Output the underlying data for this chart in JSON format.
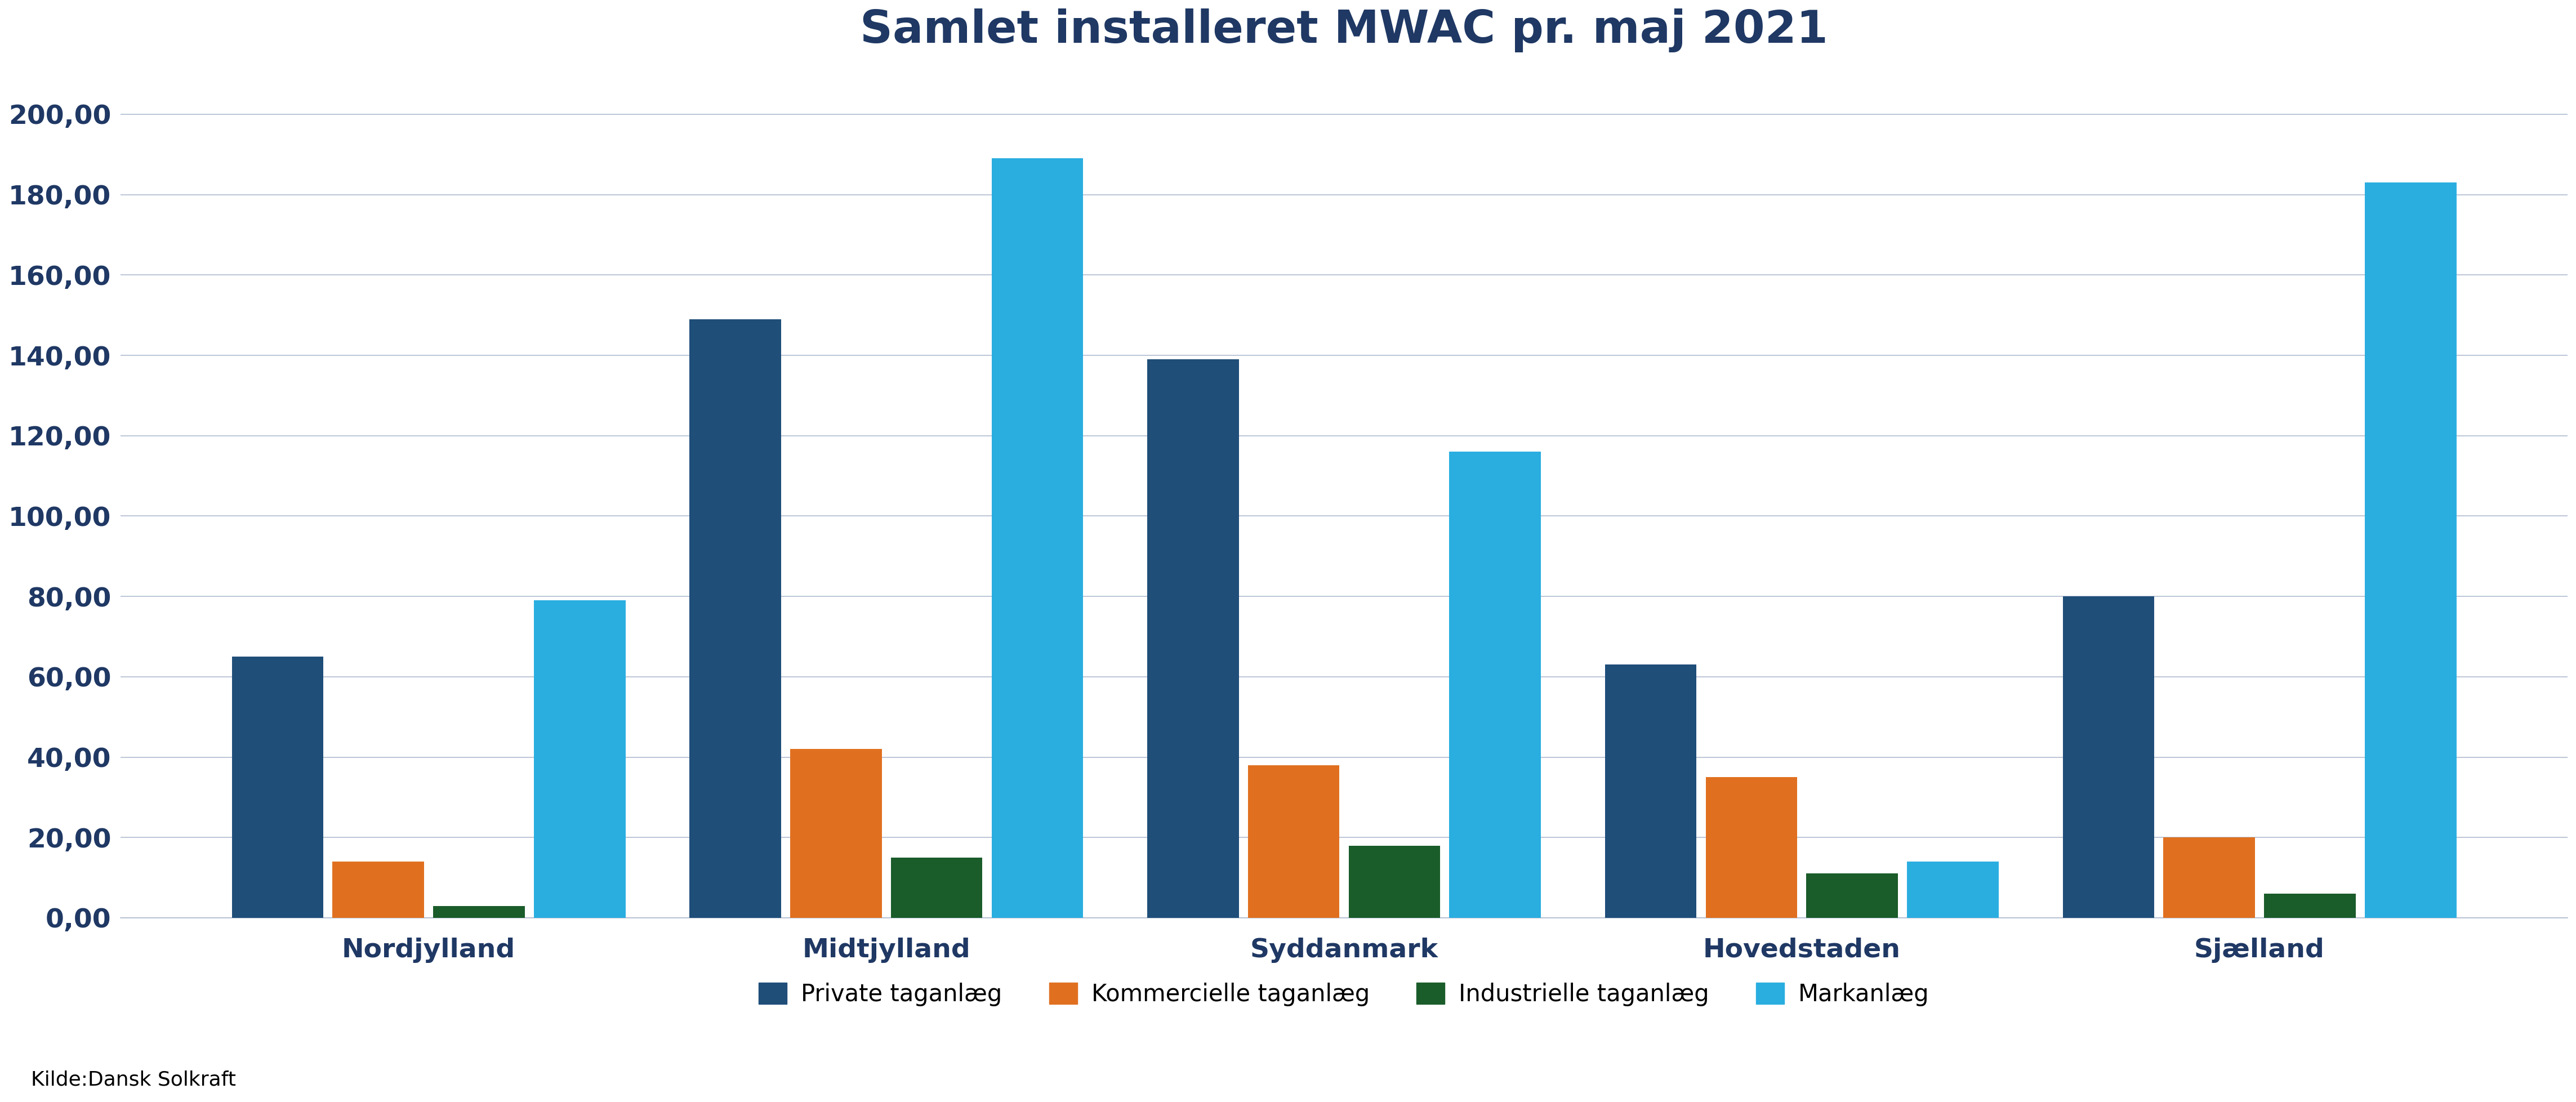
{
  "title": "Samlet installeret MWAC pr. maj 2021",
  "categories": [
    "Nordjylland",
    "Midtjylland",
    "Syddanmark",
    "Hovedstaden",
    "Sjælland"
  ],
  "series": {
    "Private taganlæg": [
      65,
      149,
      139,
      63,
      80
    ],
    "Kommercielle taganlæg": [
      14,
      42,
      38,
      35,
      20
    ],
    "Industrielle taganlæg": [
      3,
      15,
      18,
      11,
      6
    ],
    "Markanlæg": [
      79,
      189,
      116,
      14,
      183
    ]
  },
  "colors": {
    "Private taganlæg": "#1f4e79",
    "Kommercielle taganlæg": "#e07020",
    "Industrielle taganlæg": "#1a5c2a",
    "Markanlæg": "#2aaee0"
  },
  "ylim": [
    0,
    210
  ],
  "yticks": [
    0,
    20,
    40,
    60,
    80,
    100,
    120,
    140,
    160,
    180,
    200
  ],
  "background_color": "#ffffff",
  "grid_color": "#b0bcd0",
  "title_color": "#1f3864",
  "title_fontsize": 58,
  "xtick_fontsize": 34,
  "ytick_fontsize": 34,
  "legend_fontsize": 30,
  "source_text": "Kilde:Dansk Solkraft",
  "source_fontsize": 26,
  "bar_width": 0.2,
  "bar_gap": 0.02
}
